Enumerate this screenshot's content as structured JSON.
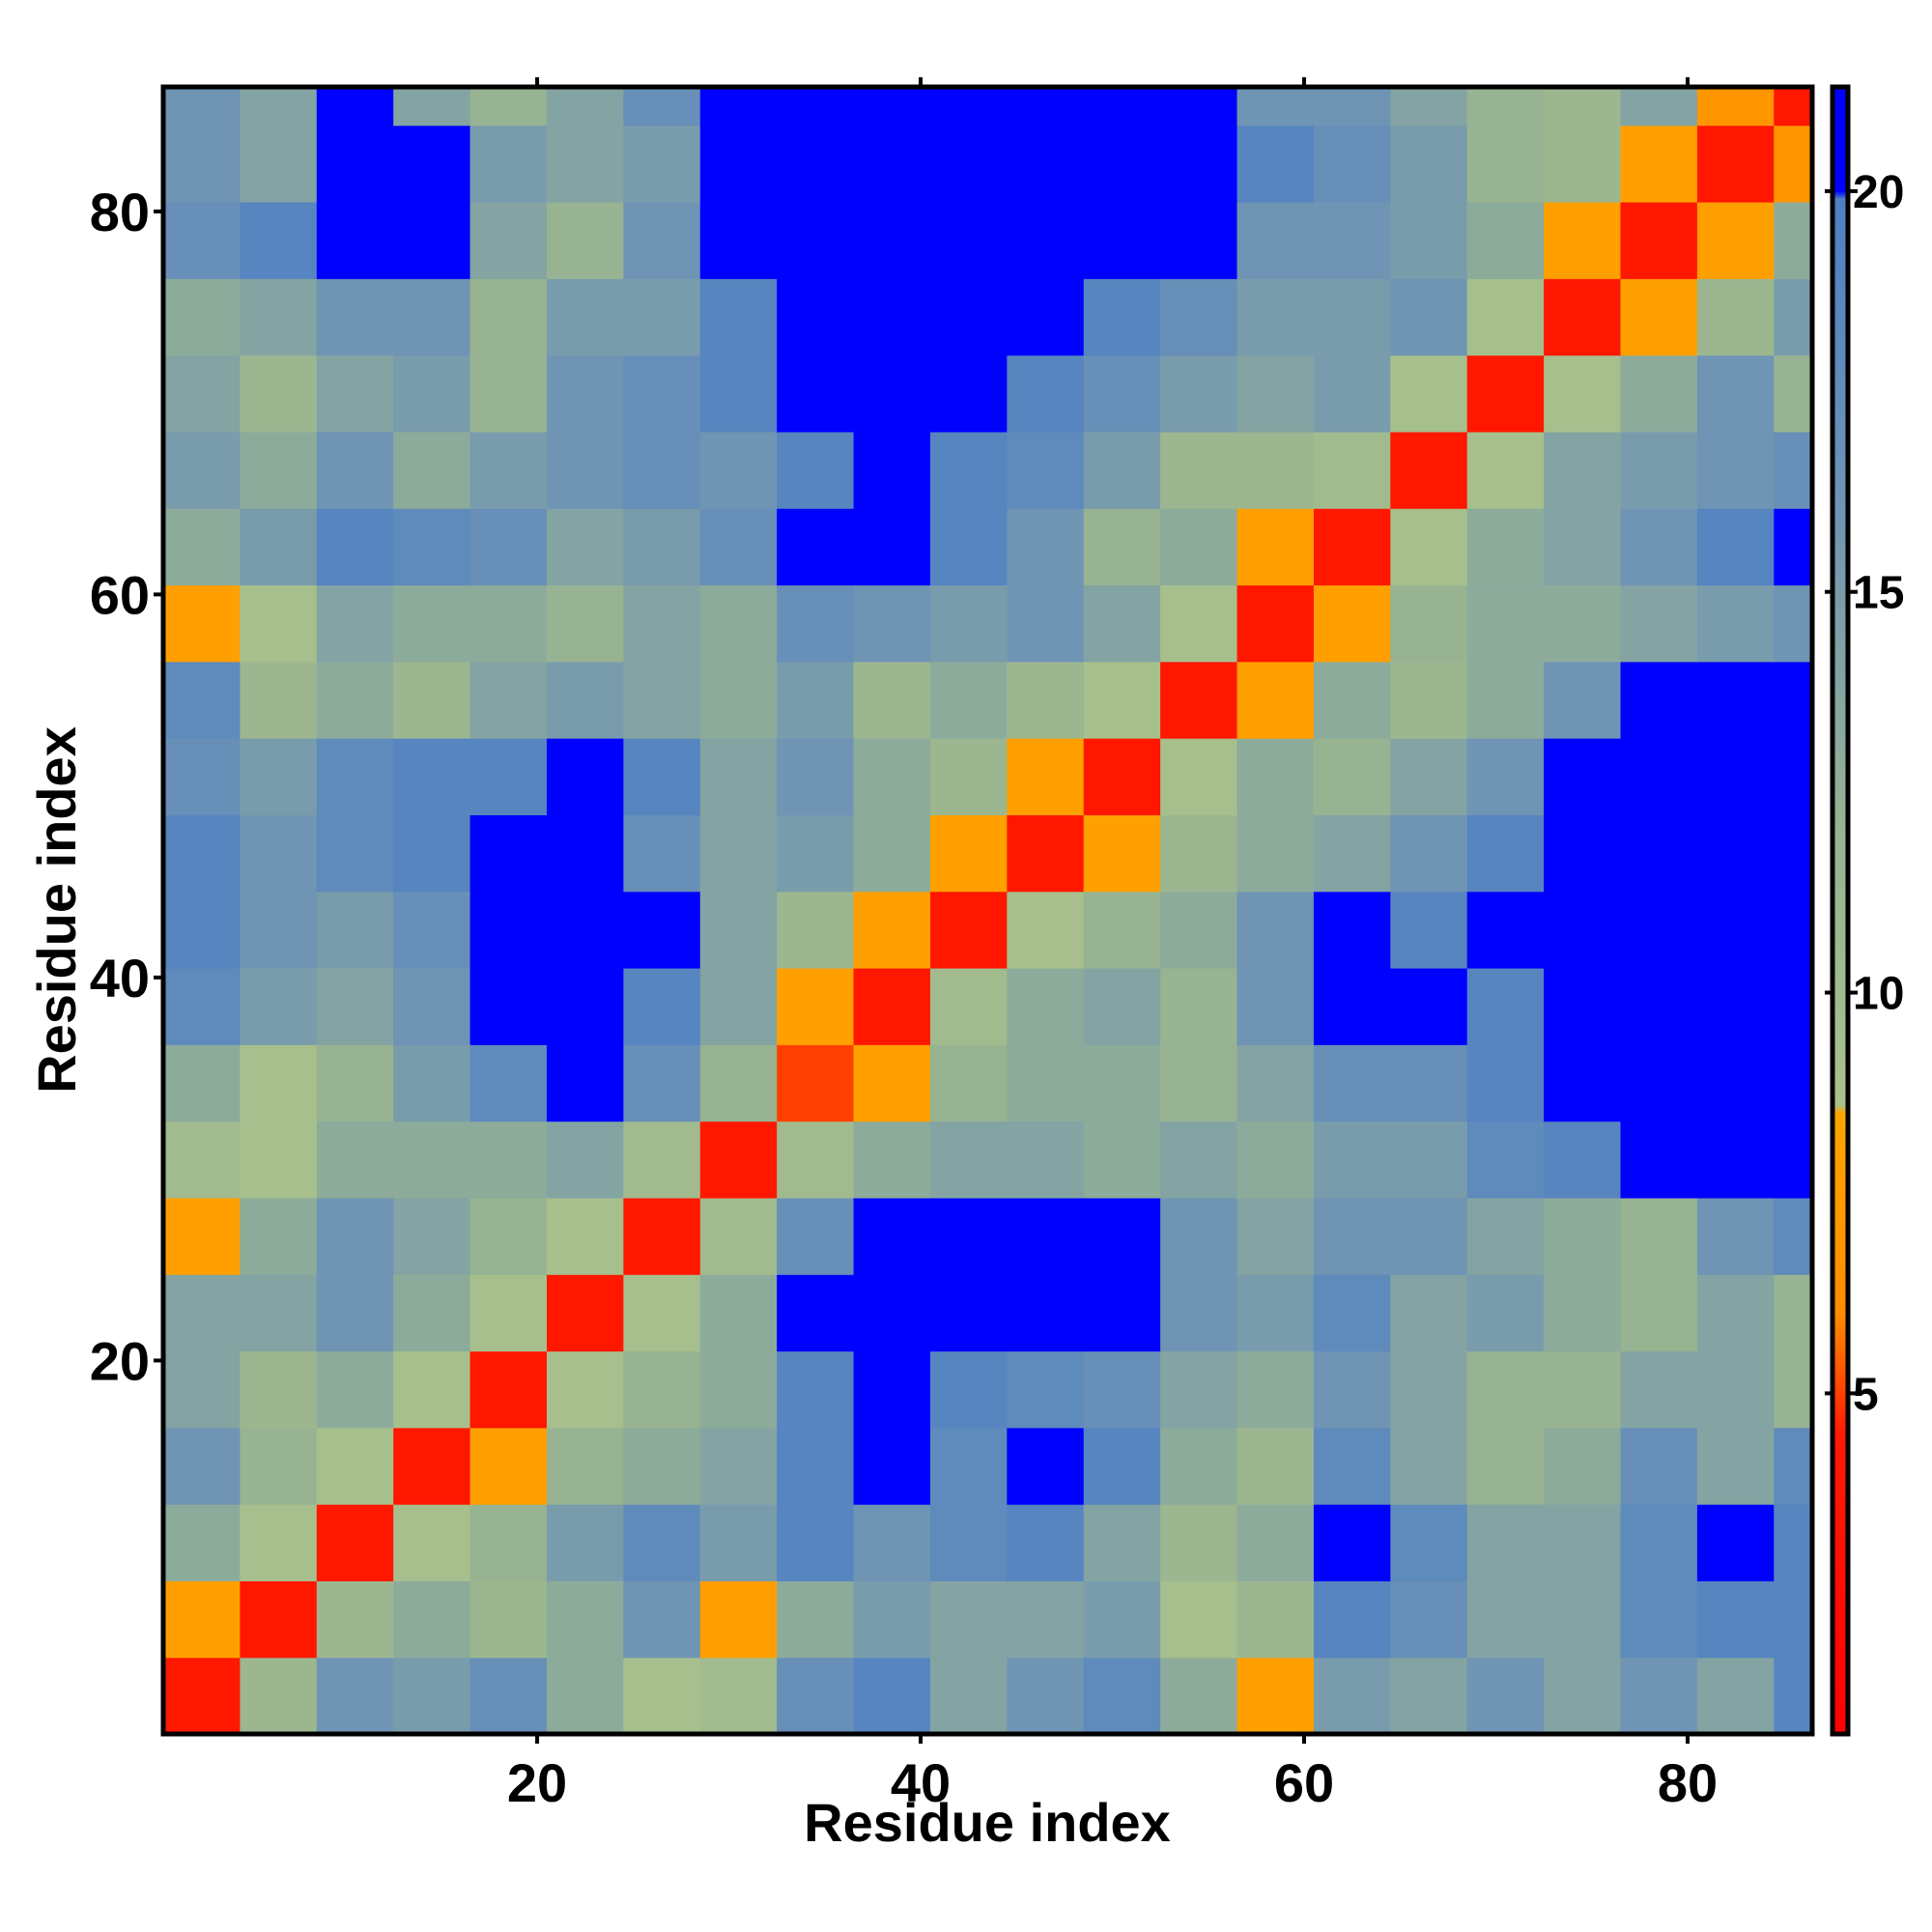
{
  "chart_data": {
    "type": "heatmap",
    "x_label": "Residue index",
    "y_label": "Residue index",
    "x_bins": [
      0.5,
      4.5,
      8.5,
      12.5,
      16.5,
      20.5,
      24.5,
      28.5,
      32.5,
      36.5,
      40.5,
      44.5,
      48.5,
      52.5,
      56.5,
      60.5,
      64.5,
      68.5,
      72.5,
      76.5,
      80.5,
      84.5,
      86.5
    ],
    "y_bins": [
      0.5,
      4.5,
      8.5,
      12.5,
      16.5,
      20.5,
      24.5,
      28.5,
      32.5,
      36.5,
      40.5,
      44.5,
      48.5,
      52.5,
      56.5,
      60.5,
      64.5,
      68.5,
      72.5,
      76.5,
      80.5,
      84.5,
      86.5
    ],
    "z": [
      [
        4,
        11,
        16,
        15,
        17,
        13,
        9,
        10,
        17,
        19,
        14,
        16,
        18,
        13,
        8,
        15,
        14,
        16,
        14,
        16,
        14,
        19
      ],
      [
        8,
        4,
        11,
        13,
        11,
        13,
        16,
        8,
        13,
        15,
        14,
        14,
        15,
        9,
        11,
        19,
        17,
        14,
        14,
        18,
        19,
        19
      ],
      [
        13,
        9,
        4,
        9,
        12,
        15,
        18,
        15,
        19,
        16,
        18,
        19,
        14,
        11,
        13,
        20,
        18,
        14,
        14,
        18,
        20,
        19
      ],
      [
        16,
        12,
        9,
        4,
        8,
        12,
        13,
        14,
        19,
        20,
        18,
        20,
        19,
        13,
        11,
        18,
        14,
        12,
        13,
        17,
        14,
        18
      ],
      [
        14,
        11,
        13,
        9,
        4,
        9,
        12,
        13,
        19,
        21,
        19,
        18,
        17,
        14,
        13,
        16,
        14,
        12,
        12,
        14,
        14,
        12
      ],
      [
        14,
        14,
        16,
        13,
        9,
        4,
        9,
        13,
        20,
        21,
        21,
        21,
        20,
        16,
        15,
        18,
        14,
        15,
        13,
        12,
        14,
        12
      ],
      [
        8,
        13,
        16,
        14,
        12,
        9,
        4,
        10,
        17,
        20,
        21,
        21,
        21,
        16,
        14,
        16,
        16,
        14,
        13,
        12,
        16,
        18
      ],
      [
        10,
        9,
        13,
        13,
        13,
        14,
        10,
        4,
        10,
        13,
        14,
        14,
        13,
        14,
        13,
        15,
        15,
        18,
        19,
        20,
        20,
        20
      ],
      [
        13,
        9,
        12,
        15,
        18,
        20,
        17,
        12,
        5,
        8,
        12,
        13,
        13,
        12,
        14,
        17,
        17,
        19,
        21,
        21,
        21,
        21
      ],
      [
        18,
        15,
        14,
        16,
        20,
        21,
        19,
        14,
        8,
        4,
        10,
        13,
        14,
        12,
        16,
        20,
        20,
        19,
        21,
        21,
        21,
        21
      ],
      [
        19,
        16,
        15,
        17,
        21,
        21,
        20,
        14,
        11,
        8,
        4,
        9,
        12,
        13,
        16,
        20,
        19,
        20,
        21,
        21,
        21,
        21
      ],
      [
        19,
        16,
        18,
        19,
        20,
        21,
        17,
        14,
        15,
        13,
        8,
        4,
        8,
        11,
        13,
        14,
        16,
        19,
        21,
        21,
        21,
        21
      ],
      [
        17,
        15,
        18,
        19,
        19,
        21,
        19,
        14,
        16,
        13,
        11,
        8,
        4,
        9,
        13,
        12,
        14,
        16,
        20,
        21,
        21,
        21
      ],
      [
        18,
        11,
        13,
        11,
        14,
        15,
        14,
        13,
        15,
        11,
        13,
        11,
        9,
        4,
        8,
        13,
        11,
        13,
        16,
        21,
        21,
        21
      ],
      [
        8,
        9,
        14,
        13,
        13,
        12,
        14,
        13,
        17,
        16,
        15,
        16,
        14,
        9,
        4,
        8,
        12,
        13,
        13,
        14,
        15,
        16
      ],
      [
        13,
        15,
        19,
        18,
        17,
        14,
        15,
        17,
        20,
        20,
        19,
        16,
        12,
        13,
        8,
        4,
        9,
        13,
        14,
        16,
        19,
        20
      ],
      [
        15,
        13,
        16,
        13,
        15,
        16,
        17,
        16,
        19,
        20,
        19,
        18,
        15,
        11,
        11,
        10,
        4,
        9,
        14,
        15,
        16,
        17
      ],
      [
        14,
        11,
        14,
        15,
        12,
        16,
        17,
        19,
        20,
        20,
        20,
        19,
        17,
        15,
        14,
        15,
        9,
        4,
        9,
        13,
        16,
        12
      ],
      [
        13,
        14,
        16,
        16,
        12,
        15,
        15,
        19,
        21,
        21,
        21,
        20,
        19,
        17,
        15,
        15,
        16,
        9,
        4,
        8,
        11,
        15
      ],
      [
        17,
        19,
        21,
        20,
        14,
        12,
        16,
        20,
        21,
        21,
        21,
        21,
        21,
        20,
        16,
        16,
        15,
        13,
        8,
        4,
        8,
        13
      ],
      [
        16,
        14,
        21,
        20,
        15,
        14,
        15,
        20,
        21,
        21,
        21,
        21,
        21,
        21,
        19,
        17,
        15,
        12,
        11,
        8,
        4,
        7
      ],
      [
        16,
        14,
        20,
        14,
        12,
        14,
        17,
        20,
        21,
        21,
        21,
        21,
        21,
        21,
        16,
        16,
        14,
        12,
        11,
        14,
        7,
        4
      ]
    ],
    "xlim": [
      0.5,
      86.5
    ],
    "ylim": [
      0.5,
      86.5
    ],
    "xticks": [
      20,
      40,
      60,
      80
    ],
    "yticks": [
      20,
      40,
      60,
      80
    ],
    "colorbar": {
      "lim": [
        0.75,
        21.3
      ],
      "ticks": [
        5,
        10,
        15,
        20
      ]
    },
    "colorscale": [
      {
        "value": 0.75,
        "color": "#ff0000"
      },
      {
        "value": 4.5,
        "color": "#ff1a00"
      },
      {
        "value": 6,
        "color": "#ff8c00"
      },
      {
        "value": 8.5,
        "color": "#ffa500"
      },
      {
        "value": 8.6,
        "color": "#a9c18c"
      },
      {
        "value": 12,
        "color": "#97b392"
      },
      {
        "value": 16,
        "color": "#6f94b4"
      },
      {
        "value": 19.9,
        "color": "#4e80c4"
      },
      {
        "value": 20,
        "color": "#0000ff"
      },
      {
        "value": 21.3,
        "color": "#0000ff"
      }
    ]
  }
}
